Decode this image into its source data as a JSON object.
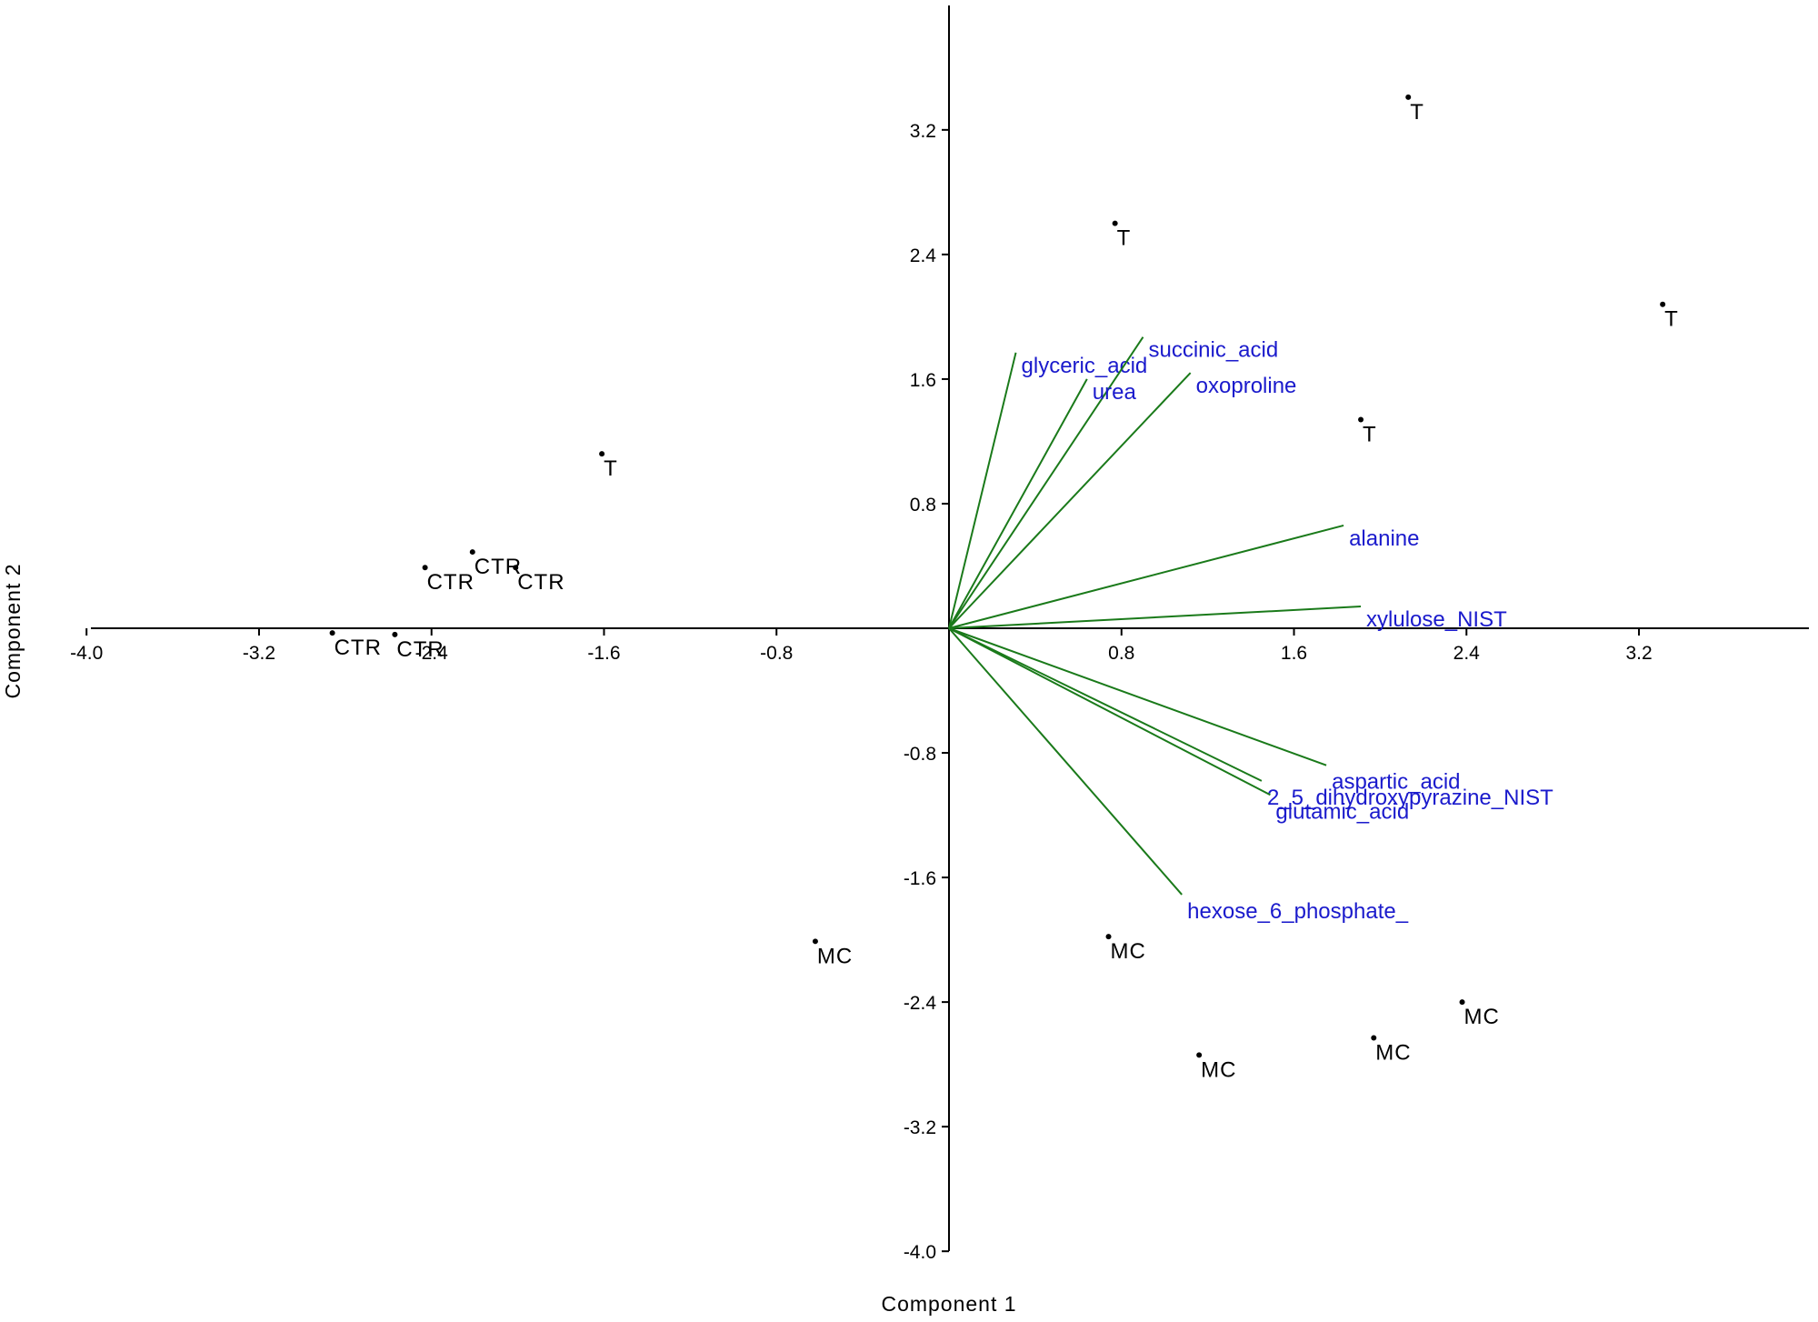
{
  "chart_data": {
    "type": "scatter",
    "subtype": "pca-biplot",
    "title": "",
    "xlabel": "Component 1",
    "ylabel": "Component 2",
    "xlim": [
      -4.0,
      4.0
    ],
    "ylim": [
      -4.0,
      4.0
    ],
    "x_ticks": [
      "-4.0",
      "-3.2",
      "-2.4",
      "-1.6",
      "-0.8",
      "0.8",
      "1.6",
      "2.4",
      "3.2"
    ],
    "x_tick_values": [
      -4.0,
      -3.2,
      -2.4,
      -1.6,
      -0.8,
      0.8,
      1.6,
      2.4,
      3.2
    ],
    "y_ticks": [
      "3.2",
      "2.4",
      "1.6",
      "0.8",
      "-0.8",
      "-1.6",
      "-2.4",
      "-3.2",
      "-4.0"
    ],
    "y_tick_values": [
      3.2,
      2.4,
      1.6,
      0.8,
      -0.8,
      -1.6,
      -2.4,
      -3.2,
      -4.0
    ],
    "grid": false,
    "legend": "none",
    "point_color": "#000000",
    "loading_color": "#1a7a1a",
    "loading_label_color": "#1a1acc",
    "points": [
      {
        "label": "T",
        "x": 2.13,
        "y": 3.41
      },
      {
        "label": "T",
        "x": 0.77,
        "y": 2.6
      },
      {
        "label": "T",
        "x": 3.31,
        "y": 2.08
      },
      {
        "label": "T",
        "x": 1.91,
        "y": 1.34
      },
      {
        "label": "T",
        "x": -1.61,
        "y": 1.12
      },
      {
        "label": "CTR",
        "x": -2.21,
        "y": 0.49
      },
      {
        "label": "CTR",
        "x": -2.43,
        "y": 0.39
      },
      {
        "label": "CTR",
        "x": -2.01,
        "y": 0.39
      },
      {
        "label": "CTR",
        "x": -2.86,
        "y": -0.03
      },
      {
        "label": "CTR",
        "x": -2.57,
        "y": -0.04
      },
      {
        "label": "MC",
        "x": -0.62,
        "y": -2.01
      },
      {
        "label": "MC",
        "x": 0.74,
        "y": -1.98
      },
      {
        "label": "MC",
        "x": 2.38,
        "y": -2.4
      },
      {
        "label": "MC",
        "x": 1.97,
        "y": -2.63
      },
      {
        "label": "MC",
        "x": 1.16,
        "y": -2.74
      }
    ],
    "loadings": [
      {
        "name": "glyceric_acid",
        "x": 0.31,
        "y": 1.77
      },
      {
        "name": "succinic_acid",
        "x": 0.9,
        "y": 1.87
      },
      {
        "name": "urea",
        "x": 0.64,
        "y": 1.6
      },
      {
        "name": "oxoproline",
        "x": 1.12,
        "y": 1.64
      },
      {
        "name": "alanine",
        "x": 1.83,
        "y": 0.66
      },
      {
        "name": "xylulose_NIST",
        "x": 1.91,
        "y": 0.14
      },
      {
        "name": "aspartic_acid",
        "x": 1.75,
        "y": -0.88
      },
      {
        "name": "2_5_dihydroxypyrazine_NIST",
        "x": 1.45,
        "y": -0.98
      },
      {
        "name": "glutamic_acid",
        "x": 1.49,
        "y": -1.07
      },
      {
        "name": "hexose_6_phosphate_",
        "x": 1.08,
        "y": -1.71
      }
    ]
  }
}
